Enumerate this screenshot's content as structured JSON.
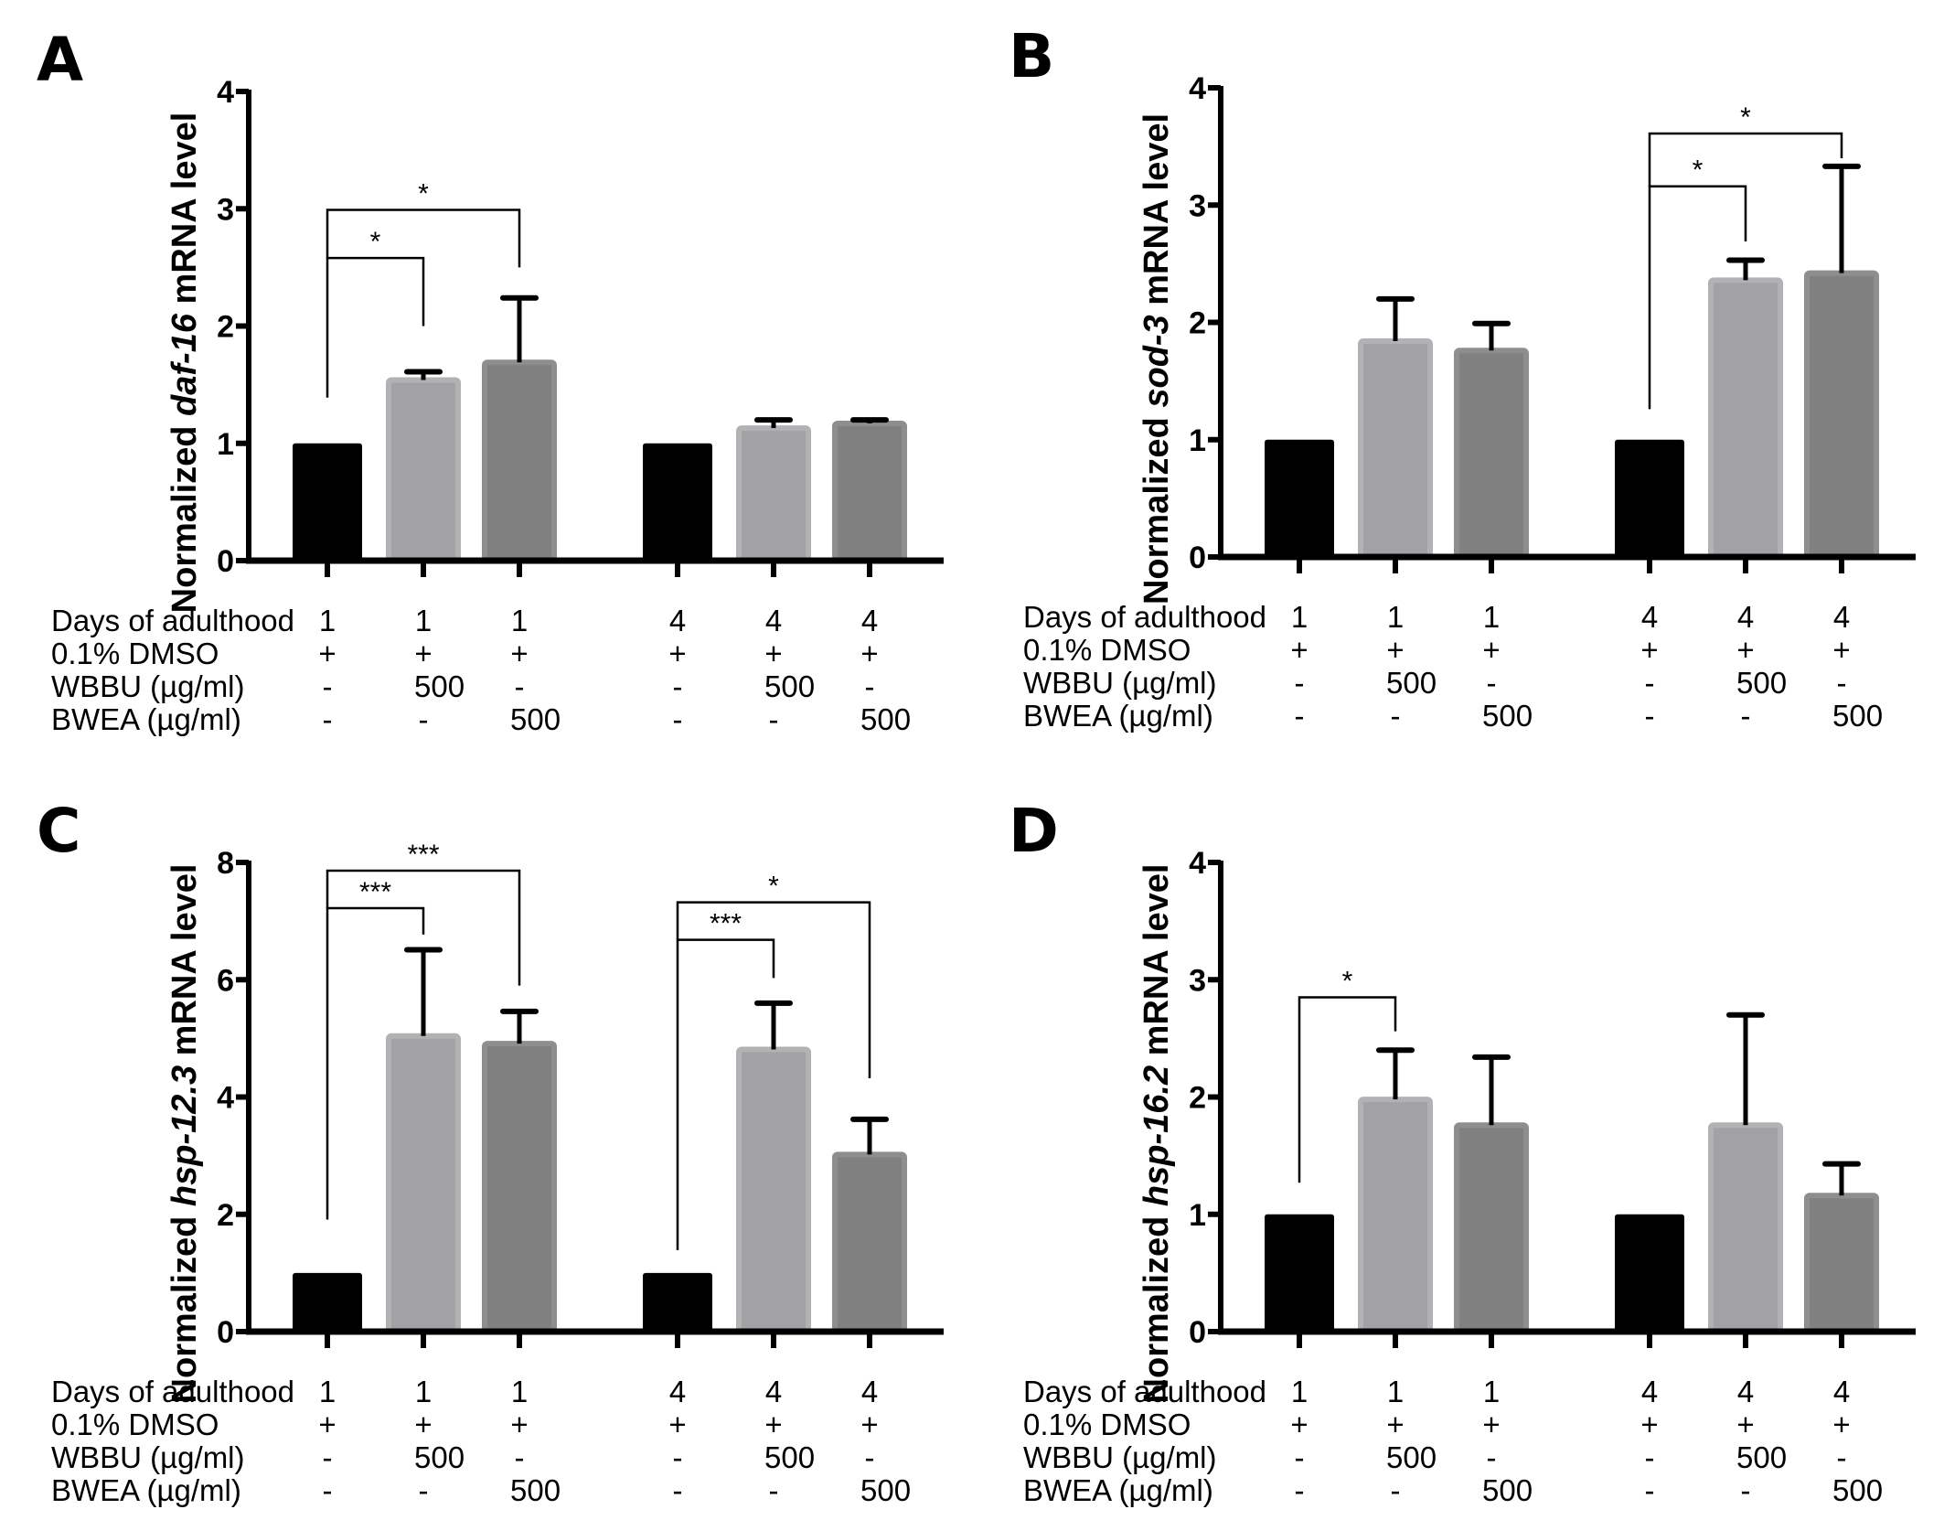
{
  "figure": {
    "row_labels": [
      "Days of adulthood",
      "0.1% DMSO",
      "WBBU (µg/ml)",
      "BWEA (µg/ml)"
    ],
    "columns": [
      [
        "1",
        "+",
        "-",
        "-"
      ],
      [
        "1",
        "+",
        "500",
        "-"
      ],
      [
        "1",
        "+",
        "-",
        "500"
      ],
      [
        "4",
        "+",
        "-",
        "-"
      ],
      [
        "4",
        "+",
        "500",
        "-"
      ],
      [
        "4",
        "+",
        "-",
        "500"
      ]
    ],
    "bar_colors": {
      "control": {
        "fill": "#000000",
        "edge": "#000000"
      },
      "WBBU": {
        "fill": "#a2a1a5",
        "edge": "#b2b2b4"
      },
      "BWEA": {
        "fill": "#808080",
        "edge": "#8e8e8e"
      }
    }
  },
  "chart_data": [
    {
      "panel": "A",
      "type": "bar",
      "title": "",
      "ylabel_prefix": "Normalized ",
      "ylabel_gene": "daf-16",
      "ylabel_suffix": " mRNA level",
      "ylim": [
        0,
        4
      ],
      "yticks": [
        "0",
        "1",
        "2",
        "3",
        "4"
      ],
      "categories": [
        "Day1 DMSO",
        "Day1 WBBU 500",
        "Day1 BWEA 500",
        "Day4 DMSO",
        "Day4 WBBU 500",
        "Day4 BWEA 500"
      ],
      "groups": [
        "control",
        "WBBU",
        "BWEA",
        "control",
        "WBBU",
        "BWEA"
      ],
      "values": [
        1.0,
        1.54,
        1.69,
        1.0,
        1.13,
        1.17
      ],
      "error_upper": [
        1.0,
        1.61,
        2.24,
        1.0,
        1.2,
        1.2
      ],
      "significance": [
        {
          "from": 0,
          "to": 1,
          "label": "*",
          "y": 2.58,
          "left_end": 1.39,
          "right_end": 2.0
        },
        {
          "from": 0,
          "to": 2,
          "label": "*",
          "y": 2.99,
          "left_end": 2.58,
          "right_end": 2.5
        }
      ]
    },
    {
      "panel": "B",
      "type": "bar",
      "title": "",
      "ylabel_prefix": "Normalized ",
      "ylabel_gene": "sod-3",
      "ylabel_suffix": " mRNA level",
      "ylim": [
        0,
        4
      ],
      "yticks": [
        "0",
        "1",
        "2",
        "3",
        "4"
      ],
      "categories": [
        "Day1 DMSO",
        "Day1 WBBU 500",
        "Day1 BWEA 500",
        "Day4 DMSO",
        "Day4 WBBU 500",
        "Day4 BWEA 500"
      ],
      "groups": [
        "control",
        "WBBU",
        "BWEA",
        "control",
        "WBBU",
        "BWEA"
      ],
      "values": [
        1.0,
        1.84,
        1.76,
        1.0,
        2.36,
        2.42
      ],
      "error_upper": [
        1.0,
        2.2,
        1.99,
        1.0,
        2.53,
        3.33
      ],
      "significance": [
        {
          "from": 3,
          "to": 4,
          "label": "*",
          "y": 3.16,
          "left_end": 1.26,
          "right_end": 2.69
        },
        {
          "from": 3,
          "to": 5,
          "label": "*",
          "y": 3.61,
          "left_end": 3.16,
          "right_end": 3.4
        }
      ]
    },
    {
      "panel": "C",
      "type": "bar",
      "title": "",
      "ylabel_prefix": "Normalized ",
      "ylabel_gene": "hsp-12.3",
      "ylabel_suffix": " mRNA level",
      "ylim": [
        0,
        8
      ],
      "yticks": [
        "0",
        "2",
        "4",
        "6",
        "8"
      ],
      "categories": [
        "Day1 DMSO",
        "Day1 WBBU 500",
        "Day1 BWEA 500",
        "Day4 DMSO",
        "Day4 WBBU 500",
        "Day4 BWEA 500"
      ],
      "groups": [
        "control",
        "WBBU",
        "BWEA",
        "control",
        "WBBU",
        "BWEA"
      ],
      "values": [
        1.0,
        5.04,
        4.91,
        1.0,
        4.81,
        3.02
      ],
      "error_upper": [
        1.0,
        6.51,
        5.46,
        1.0,
        5.6,
        3.62
      ],
      "significance": [
        {
          "from": 0,
          "to": 1,
          "label": "***",
          "y": 7.22,
          "left_end": 1.91,
          "right_end": 6.77
        },
        {
          "from": 0,
          "to": 2,
          "label": "***",
          "y": 7.86,
          "left_end": 7.22,
          "right_end": 5.9
        },
        {
          "from": 3,
          "to": 4,
          "label": "***",
          "y": 6.68,
          "left_end": 1.39,
          "right_end": 6.03
        },
        {
          "from": 3,
          "to": 5,
          "label": "*",
          "y": 7.32,
          "left_end": 6.68,
          "right_end": 4.32
        }
      ]
    },
    {
      "panel": "D",
      "type": "bar",
      "title": "",
      "ylabel_prefix": "Normalized ",
      "ylabel_gene": "hsp-16.2",
      "ylabel_suffix": " mRNA level",
      "ylim": [
        0,
        4
      ],
      "yticks": [
        "0",
        "1",
        "2",
        "3",
        "4"
      ],
      "categories": [
        "Day1 DMSO",
        "Day1 WBBU 500",
        "Day1 BWEA 500",
        "Day4 DMSO",
        "Day4 WBBU 500",
        "Day4 BWEA 500"
      ],
      "groups": [
        "control",
        "WBBU",
        "BWEA",
        "control",
        "WBBU",
        "BWEA"
      ],
      "values": [
        1.0,
        1.98,
        1.76,
        1.0,
        1.76,
        1.16
      ],
      "error_upper": [
        1.0,
        2.4,
        2.34,
        1.0,
        2.7,
        1.43
      ],
      "significance": [
        {
          "from": 0,
          "to": 1,
          "label": "*",
          "y": 2.85,
          "left_end": 1.27,
          "right_end": 2.56
        }
      ]
    }
  ]
}
